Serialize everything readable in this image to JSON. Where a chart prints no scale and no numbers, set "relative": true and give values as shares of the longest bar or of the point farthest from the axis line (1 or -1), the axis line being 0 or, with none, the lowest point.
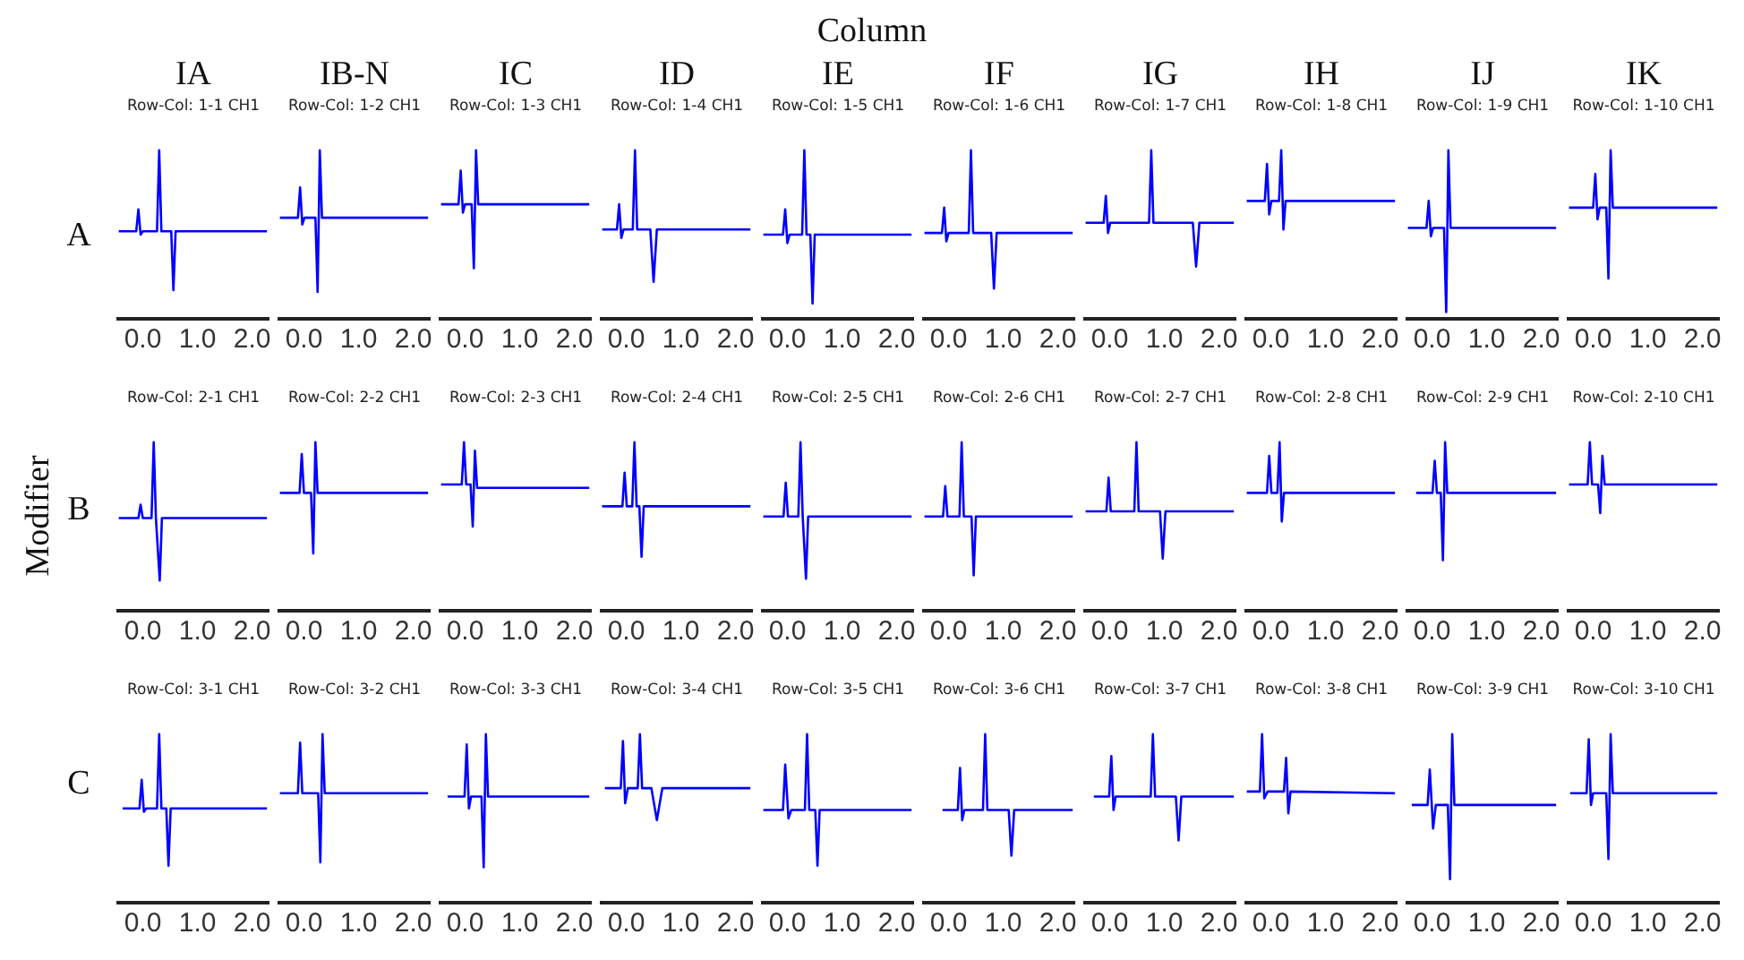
{
  "chart_data": [
    {
      "type": "other",
      "title": "Column",
      "ylabel": "Modifier",
      "categories": [
        "IA",
        "IB-N",
        "IC",
        "ID",
        "IE",
        "IF",
        "IG",
        "IH",
        "IJ",
        "IK"
      ],
      "y_categories": [
        "A",
        "B",
        "C"
      ]
    },
    {
      "type": "line",
      "title": "Row-Col: 1-1 CH1",
      "relative": true,
      "color": "#0000ff",
      "xlim": [
        -0.45,
        2.3
      ],
      "xticks": [
        {
          "value": 0,
          "label": "0.0"
        },
        {
          "value": 1,
          "label": "1.0"
        },
        {
          "value": 2,
          "label": "2.0"
        }
      ],
      "x": [
        -0.44,
        -0.12,
        -0.08,
        -0.04,
        0,
        0.26,
        0.3,
        0.34,
        0.52,
        0.56,
        0.6,
        2.27
      ],
      "values": [
        0.52,
        0.52,
        0.65,
        0.5,
        0.52,
        0.52,
        1,
        0.52,
        0.52,
        0.17,
        0.52,
        0.52
      ]
    },
    {
      "type": "line",
      "title": "Row-Col: 1-2 CH1",
      "relative": true,
      "color": "#0000ff",
      "xlim": [
        -0.45,
        2.3
      ],
      "xticks": [
        {
          "value": 0,
          "label": "0.0"
        },
        {
          "value": 1,
          "label": "1.0"
        },
        {
          "value": 2,
          "label": "2.0"
        }
      ],
      "x": [
        -0.44,
        -0.11,
        -0.07,
        -0.03,
        0.01,
        0.21,
        0.25,
        0.29,
        0.33,
        2.27
      ],
      "values": [
        0.6,
        0.6,
        0.78,
        0.56,
        0.6,
        0.6,
        0.16,
        1,
        0.6,
        0.6
      ]
    },
    {
      "type": "line",
      "title": "Row-Col: 1-3 CH1",
      "relative": true,
      "color": "#0000ff",
      "xlim": [
        -0.45,
        2.3
      ],
      "xticks": [
        {
          "value": 0,
          "label": "0.0"
        },
        {
          "value": 1,
          "label": "1.0"
        },
        {
          "value": 2,
          "label": "2.0"
        }
      ],
      "x": [
        -0.44,
        -0.12,
        -0.08,
        -0.04,
        0,
        0.12,
        0.16,
        0.2,
        0.24,
        2.27
      ],
      "values": [
        0.68,
        0.68,
        0.88,
        0.63,
        0.68,
        0.68,
        0.3,
        1,
        0.68,
        0.68
      ]
    },
    {
      "type": "line",
      "title": "Row-Col: 1-4 CH1",
      "relative": true,
      "color": "#0000ff",
      "xlim": [
        -0.45,
        2.3
      ],
      "xticks": [
        {
          "value": 0,
          "label": "0.0"
        },
        {
          "value": 1,
          "label": "1.0"
        },
        {
          "value": 2,
          "label": "2.0"
        }
      ],
      "x": [
        -0.44,
        -0.17,
        -0.13,
        -0.09,
        -0.05,
        0.12,
        0.16,
        0.2,
        0.44,
        0.5,
        0.56,
        2.27
      ],
      "values": [
        0.53,
        0.53,
        0.68,
        0.48,
        0.53,
        0.53,
        1,
        0.53,
        0.53,
        0.22,
        0.53,
        0.53
      ]
    },
    {
      "type": "line",
      "title": "Row-Col: 1-5 CH1",
      "relative": true,
      "color": "#0000ff",
      "xlim": [
        -0.45,
        2.3
      ],
      "xticks": [
        {
          "value": 0,
          "label": "0.0"
        },
        {
          "value": 1,
          "label": "1.0"
        },
        {
          "value": 2,
          "label": "2.0"
        }
      ],
      "x": [
        -0.44,
        -0.08,
        -0.04,
        0,
        0.04,
        0.27,
        0.31,
        0.35,
        0.42,
        0.46,
        0.5,
        2.27
      ],
      "values": [
        0.5,
        0.5,
        0.65,
        0.45,
        0.5,
        0.5,
        1,
        0.5,
        0.5,
        0.09,
        0.5,
        0.5
      ]
    },
    {
      "type": "line",
      "title": "Row-Col: 1-6 CH1",
      "relative": true,
      "color": "#0000ff",
      "xlim": [
        -0.45,
        2.3
      ],
      "xticks": [
        {
          "value": 0,
          "label": "0.0"
        },
        {
          "value": 1,
          "label": "1.0"
        },
        {
          "value": 2,
          "label": "2.0"
        }
      ],
      "x": [
        -0.44,
        -0.12,
        -0.08,
        -0.04,
        0,
        0.37,
        0.41,
        0.45,
        0.78,
        0.83,
        0.88,
        2.27
      ],
      "values": [
        0.51,
        0.51,
        0.66,
        0.46,
        0.51,
        0.51,
        1,
        0.51,
        0.51,
        0.18,
        0.51,
        0.51
      ]
    },
    {
      "type": "line",
      "title": "Row-Col: 1-7 CH1",
      "relative": true,
      "color": "#0000ff",
      "xlim": [
        -0.45,
        2.3
      ],
      "xticks": [
        {
          "value": 0,
          "label": "0.0"
        },
        {
          "value": 1,
          "label": "1.0"
        },
        {
          "value": 2,
          "label": "2.0"
        }
      ],
      "x": [
        -0.44,
        -0.11,
        -0.07,
        -0.03,
        0.01,
        0.72,
        0.76,
        0.8,
        1.52,
        1.58,
        1.64,
        2.27
      ],
      "values": [
        0.57,
        0.57,
        0.73,
        0.51,
        0.57,
        0.57,
        1,
        0.57,
        0.57,
        0.31,
        0.57,
        0.57
      ]
    },
    {
      "type": "line",
      "title": "Row-Col: 1-8 CH1",
      "relative": true,
      "color": "#0000ff",
      "xlim": [
        -0.45,
        2.3
      ],
      "xticks": [
        {
          "value": 0,
          "label": "0.0"
        },
        {
          "value": 1,
          "label": "1.0"
        },
        {
          "value": 2,
          "label": "2.0"
        }
      ],
      "x": [
        -0.44,
        -0.11,
        -0.07,
        -0.03,
        0.01,
        0.15,
        0.19,
        0.23,
        0.27,
        2.27
      ],
      "values": [
        0.7,
        0.7,
        0.92,
        0.62,
        0.7,
        0.7,
        1,
        0.53,
        0.7,
        0.7
      ]
    },
    {
      "type": "line",
      "title": "Row-Col: 1-9 CH1",
      "relative": true,
      "color": "#0000ff",
      "xlim": [
        -0.45,
        2.3
      ],
      "xticks": [
        {
          "value": 0,
          "label": "0.0"
        },
        {
          "value": 1,
          "label": "1.0"
        },
        {
          "value": 2,
          "label": "2.0"
        }
      ],
      "x": [
        -0.44,
        -0.1,
        -0.06,
        -0.02,
        0.02,
        0.22,
        0.26,
        0.3,
        0.34,
        2.27
      ],
      "values": [
        0.54,
        0.54,
        0.7,
        0.49,
        0.54,
        0.54,
        0.04,
        1,
        0.54,
        0.54
      ]
    },
    {
      "type": "line",
      "title": "Row-Col: 1-10 CH1",
      "relative": true,
      "color": "#0000ff",
      "xlim": [
        -0.45,
        2.3
      ],
      "xticks": [
        {
          "value": 0,
          "label": "0.0"
        },
        {
          "value": 1,
          "label": "1.0"
        },
        {
          "value": 2,
          "label": "2.0"
        }
      ],
      "x": [
        -0.44,
        0,
        0.04,
        0.08,
        0.12,
        0.24,
        0.28,
        0.32,
        0.36,
        2.27
      ],
      "values": [
        0.66,
        0.66,
        0.86,
        0.59,
        0.66,
        0.66,
        0.24,
        1,
        0.66,
        0.66
      ]
    },
    {
      "type": "line",
      "title": "Row-Col: 2-1 CH1",
      "relative": true,
      "color": "#0000ff",
      "xlim": [
        -0.45,
        2.3
      ],
      "xticks": [
        {
          "value": 0,
          "label": "0.0"
        },
        {
          "value": 1,
          "label": "1.0"
        },
        {
          "value": 2,
          "label": "2.0"
        }
      ],
      "x": [
        -0.44,
        -0.08,
        -0.04,
        0,
        0.16,
        0.2,
        0.24,
        0.27,
        0.31,
        0.35,
        2.27
      ],
      "values": [
        0.55,
        0.55,
        0.63,
        0.55,
        0.55,
        1,
        0.55,
        0.55,
        0.18,
        0.55,
        0.55
      ]
    },
    {
      "type": "line",
      "title": "Row-Col: 2-2 CH1",
      "relative": true,
      "color": "#0000ff",
      "xlim": [
        -0.45,
        2.3
      ],
      "xticks": [
        {
          "value": 0,
          "label": "0.0"
        },
        {
          "value": 1,
          "label": "1.0"
        },
        {
          "value": 2,
          "label": "2.0"
        }
      ],
      "x": [
        -0.44,
        -0.08,
        -0.04,
        0,
        0.13,
        0.17,
        0.21,
        0.25,
        2.27
      ],
      "values": [
        0.7,
        0.7,
        0.93,
        0.7,
        0.7,
        0.34,
        1,
        0.7,
        0.7
      ]
    },
    {
      "type": "line",
      "title": "Row-Col: 2-3 CH1",
      "relative": true,
      "color": "#0000ff",
      "xlim": [
        -0.45,
        2.3
      ],
      "xticks": [
        {
          "value": 0,
          "label": "0.0"
        },
        {
          "value": 1,
          "label": "1.0"
        },
        {
          "value": 2,
          "label": "2.0"
        }
      ],
      "x": [
        -0.44,
        -0.06,
        -0.02,
        0.02,
        0.1,
        0.14,
        0.18,
        0.22,
        2.27
      ],
      "values": [
        0.75,
        0.75,
        1,
        0.75,
        0.75,
        0.5,
        0.95,
        0.73,
        0.73
      ]
    },
    {
      "type": "line",
      "title": "Row-Col: 2-4 CH1",
      "relative": true,
      "color": "#0000ff",
      "xlim": [
        -0.45,
        2.3
      ],
      "xticks": [
        {
          "value": 0,
          "label": "0.0"
        },
        {
          "value": 1,
          "label": "1.0"
        },
        {
          "value": 2,
          "label": "2.0"
        }
      ],
      "x": [
        -0.44,
        -0.07,
        -0.03,
        0.01,
        0.11,
        0.15,
        0.19,
        0.24,
        0.28,
        0.32,
        2.27
      ],
      "values": [
        0.62,
        0.62,
        0.82,
        0.62,
        0.62,
        1,
        0.62,
        0.62,
        0.32,
        0.62,
        0.62
      ]
    },
    {
      "type": "line",
      "title": "Row-Col: 2-5 CH1",
      "relative": true,
      "color": "#0000ff",
      "xlim": [
        -0.45,
        2.3
      ],
      "xticks": [
        {
          "value": 0,
          "label": "0.0"
        },
        {
          "value": 1,
          "label": "1.0"
        },
        {
          "value": 2,
          "label": "2.0"
        }
      ],
      "x": [
        -0.44,
        -0.07,
        -0.03,
        0.01,
        0.2,
        0.24,
        0.28,
        0.3,
        0.34,
        0.38,
        2.27
      ],
      "values": [
        0.56,
        0.56,
        0.76,
        0.56,
        0.56,
        1,
        0.56,
        0.56,
        0.19,
        0.56,
        0.56
      ]
    },
    {
      "type": "line",
      "title": "Row-Col: 2-6 CH1",
      "relative": true,
      "color": "#0000ff",
      "xlim": [
        -0.45,
        2.3
      ],
      "xticks": [
        {
          "value": 0,
          "label": "0.0"
        },
        {
          "value": 1,
          "label": "1.0"
        },
        {
          "value": 2,
          "label": "2.0"
        }
      ],
      "x": [
        -0.44,
        -0.1,
        -0.06,
        -0.02,
        0.2,
        0.24,
        0.28,
        0.42,
        0.46,
        0.5,
        2.27
      ],
      "values": [
        0.56,
        0.56,
        0.74,
        0.56,
        0.56,
        1,
        0.56,
        0.56,
        0.21,
        0.56,
        0.56
      ]
    },
    {
      "type": "line",
      "title": "Row-Col: 2-7 CH1",
      "relative": true,
      "color": "#0000ff",
      "xlim": [
        -0.45,
        2.3
      ],
      "xticks": [
        {
          "value": 0,
          "label": "0.0"
        },
        {
          "value": 1,
          "label": "1.0"
        },
        {
          "value": 2,
          "label": "2.0"
        }
      ],
      "x": [
        -0.44,
        -0.06,
        -0.02,
        0.02,
        0.45,
        0.49,
        0.53,
        0.92,
        0.97,
        1.02,
        2.27
      ],
      "values": [
        0.59,
        0.59,
        0.79,
        0.59,
        0.59,
        1,
        0.59,
        0.59,
        0.31,
        0.59,
        0.59
      ]
    },
    {
      "type": "line",
      "title": "Row-Col: 2-8 CH1",
      "relative": true,
      "color": "#0000ff",
      "xlim": [
        -0.45,
        2.3
      ],
      "xticks": [
        {
          "value": 0,
          "label": "0.0"
        },
        {
          "value": 1,
          "label": "1.0"
        },
        {
          "value": 2,
          "label": "2.0"
        }
      ],
      "x": [
        -0.44,
        -0.07,
        -0.03,
        0.01,
        0.12,
        0.16,
        0.2,
        0.24,
        2.27
      ],
      "values": [
        0.7,
        0.7,
        0.92,
        0.7,
        0.7,
        1,
        0.53,
        0.7,
        0.7
      ]
    },
    {
      "type": "line",
      "title": "Row-Col: 2-9 CH1",
      "relative": true,
      "color": "#0000ff",
      "xlim": [
        -0.45,
        2.3
      ],
      "xticks": [
        {
          "value": 0,
          "label": "0.0"
        },
        {
          "value": 1,
          "label": "1.0"
        },
        {
          "value": 2,
          "label": "2.0"
        }
      ],
      "x": [
        -0.29,
        0.01,
        0.05,
        0.09,
        0.16,
        0.2,
        0.24,
        0.28,
        2.27
      ],
      "values": [
        0.7,
        0.7,
        0.89,
        0.7,
        0.7,
        0.3,
        1,
        0.7,
        0.7
      ]
    },
    {
      "type": "line",
      "title": "Row-Col: 2-10 CH1",
      "relative": true,
      "color": "#0000ff",
      "xlim": [
        -0.45,
        2.3
      ],
      "xticks": [
        {
          "value": 0,
          "label": "0.0"
        },
        {
          "value": 1,
          "label": "1.0"
        },
        {
          "value": 2,
          "label": "2.0"
        }
      ],
      "x": [
        -0.44,
        -0.1,
        -0.06,
        -0.02,
        0.09,
        0.13,
        0.17,
        0.21,
        2.27
      ],
      "values": [
        0.75,
        0.75,
        1,
        0.75,
        0.75,
        0.58,
        0.92,
        0.75,
        0.75
      ]
    },
    {
      "type": "line",
      "title": "Row-Col: 3-1 CH1",
      "relative": true,
      "color": "#0000ff",
      "xlim": [
        -0.45,
        2.3
      ],
      "xticks": [
        {
          "value": 0,
          "label": "0.0"
        },
        {
          "value": 1,
          "label": "1.0"
        },
        {
          "value": 2,
          "label": "2.0"
        }
      ],
      "x": [
        -0.37,
        -0.06,
        -0.02,
        0.02,
        0.06,
        0.26,
        0.3,
        0.34,
        0.43,
        0.47,
        0.51,
        2.27
      ],
      "values": [
        0.56,
        0.56,
        0.73,
        0.54,
        0.56,
        0.56,
        1,
        0.56,
        0.56,
        0.22,
        0.56,
        0.56
      ]
    },
    {
      "type": "line",
      "title": "Row-Col: 3-2 CH1",
      "relative": true,
      "color": "#0000ff",
      "xlim": [
        -0.45,
        2.3
      ],
      "xticks": [
        {
          "value": 0,
          "label": "0.0"
        },
        {
          "value": 1,
          "label": "1.0"
        },
        {
          "value": 2,
          "label": "2.0"
        }
      ],
      "x": [
        -0.44,
        -0.11,
        -0.07,
        -0.03,
        0.26,
        0.3,
        0.34,
        0.38,
        2.27
      ],
      "values": [
        0.65,
        0.65,
        0.95,
        0.65,
        0.65,
        0.24,
        1,
        0.65,
        0.65
      ]
    },
    {
      "type": "line",
      "title": "Row-Col: 3-3 CH1",
      "relative": true,
      "color": "#0000ff",
      "xlim": [
        -0.45,
        2.3
      ],
      "xticks": [
        {
          "value": 0,
          "label": "0.0"
        },
        {
          "value": 1,
          "label": "1.0"
        },
        {
          "value": 2,
          "label": "2.0"
        }
      ],
      "x": [
        -0.32,
        -0.01,
        0.03,
        0.07,
        0.11,
        0.3,
        0.34,
        0.38,
        0.42,
        2.27
      ],
      "values": [
        0.63,
        0.63,
        0.94,
        0.56,
        0.63,
        0.63,
        0.21,
        1,
        0.63,
        0.63
      ]
    },
    {
      "type": "line",
      "title": "Row-Col: 3-4 CH1",
      "relative": true,
      "color": "#0000ff",
      "xlim": [
        -0.45,
        2.3
      ],
      "xticks": [
        {
          "value": 0,
          "label": "0.0"
        },
        {
          "value": 1,
          "label": "1.0"
        },
        {
          "value": 2,
          "label": "2.0"
        }
      ],
      "x": [
        -0.39,
        -0.1,
        -0.06,
        -0.02,
        0.03,
        0.21,
        0.25,
        0.29,
        0.46,
        0.56,
        0.66,
        2.27
      ],
      "values": [
        0.68,
        0.68,
        0.96,
        0.59,
        0.68,
        0.68,
        1,
        0.68,
        0.68,
        0.49,
        0.68,
        0.68
      ]
    },
    {
      "type": "line",
      "title": "Row-Col: 3-5 CH1",
      "relative": true,
      "color": "#0000ff",
      "xlim": [
        -0.45,
        2.3
      ],
      "xticks": [
        {
          "value": 0,
          "label": "0.0"
        },
        {
          "value": 1,
          "label": "1.0"
        },
        {
          "value": 2,
          "label": "2.0"
        }
      ],
      "x": [
        -0.44,
        -0.08,
        -0.04,
        0.02,
        0.07,
        0.32,
        0.36,
        0.4,
        0.51,
        0.55,
        0.59,
        2.27
      ],
      "values": [
        0.55,
        0.55,
        0.82,
        0.5,
        0.55,
        0.55,
        1,
        0.55,
        0.55,
        0.22,
        0.55,
        0.55
      ]
    },
    {
      "type": "line",
      "title": "Row-Col: 3-6 CH1",
      "relative": true,
      "color": "#0000ff",
      "xlim": [
        -0.45,
        2.3
      ],
      "xticks": [
        {
          "value": 0,
          "label": "0.0"
        },
        {
          "value": 1,
          "label": "1.0"
        },
        {
          "value": 2,
          "label": "2.0"
        }
      ],
      "x": [
        -0.11,
        0.17,
        0.21,
        0.25,
        0.29,
        0.63,
        0.67,
        0.71,
        1.1,
        1.15,
        1.2,
        2.27
      ],
      "values": [
        0.55,
        0.55,
        0.8,
        0.49,
        0.55,
        0.55,
        1,
        0.55,
        0.55,
        0.28,
        0.55,
        0.55
      ]
    },
    {
      "type": "line",
      "title": "Row-Col: 3-7 CH1",
      "relative": true,
      "color": "#0000ff",
      "xlim": [
        -0.45,
        2.3
      ],
      "xticks": [
        {
          "value": 0,
          "label": "0.0"
        },
        {
          "value": 1,
          "label": "1.0"
        },
        {
          "value": 2,
          "label": "2.0"
        }
      ],
      "x": [
        -0.29,
        -0.01,
        0.03,
        0.07,
        0.11,
        0.75,
        0.79,
        0.83,
        1.21,
        1.26,
        1.31,
        2.27
      ],
      "values": [
        0.63,
        0.63,
        0.87,
        0.55,
        0.63,
        0.63,
        1,
        0.63,
        0.63,
        0.37,
        0.63,
        0.63
      ]
    },
    {
      "type": "line",
      "title": "Row-Col: 3-8 CH1",
      "relative": true,
      "color": "#0000ff",
      "xlim": [
        -0.45,
        2.3
      ],
      "xticks": [
        {
          "value": 0,
          "label": "0.0"
        },
        {
          "value": 1,
          "label": "1.0"
        },
        {
          "value": 2,
          "label": "2.0"
        }
      ],
      "x": [
        -0.44,
        -0.2,
        -0.16,
        -0.12,
        -0.06,
        0.24,
        0.28,
        0.32,
        0.36,
        2.27
      ],
      "values": [
        0.66,
        0.66,
        1,
        0.62,
        0.66,
        0.66,
        0.86,
        0.53,
        0.66,
        0.65
      ]
    },
    {
      "type": "line",
      "title": "Row-Col: 3-9 CH1",
      "relative": true,
      "color": "#0000ff",
      "xlim": [
        -0.45,
        2.3
      ],
      "xticks": [
        {
          "value": 0,
          "label": "0.0"
        },
        {
          "value": 1,
          "label": "1.0"
        },
        {
          "value": 2,
          "label": "2.0"
        }
      ],
      "x": [
        -0.37,
        -0.08,
        -0.04,
        0.02,
        0.07,
        0.29,
        0.33,
        0.37,
        0.41,
        2.27
      ],
      "values": [
        0.58,
        0.58,
        0.79,
        0.44,
        0.58,
        0.58,
        0.14,
        1,
        0.58,
        0.58
      ]
    },
    {
      "type": "line",
      "title": "Row-Col: 3-10 CH1",
      "relative": true,
      "color": "#0000ff",
      "xlim": [
        -0.45,
        2.3
      ],
      "xticks": [
        {
          "value": 0,
          "label": "0.0"
        },
        {
          "value": 1,
          "label": "1.0"
        },
        {
          "value": 2,
          "label": "2.0"
        }
      ],
      "x": [
        -0.42,
        -0.12,
        -0.08,
        -0.04,
        0,
        0.24,
        0.28,
        0.32,
        0.36,
        2.27
      ],
      "values": [
        0.65,
        0.65,
        0.97,
        0.58,
        0.65,
        0.65,
        0.26,
        1,
        0.65,
        0.65
      ]
    }
  ]
}
